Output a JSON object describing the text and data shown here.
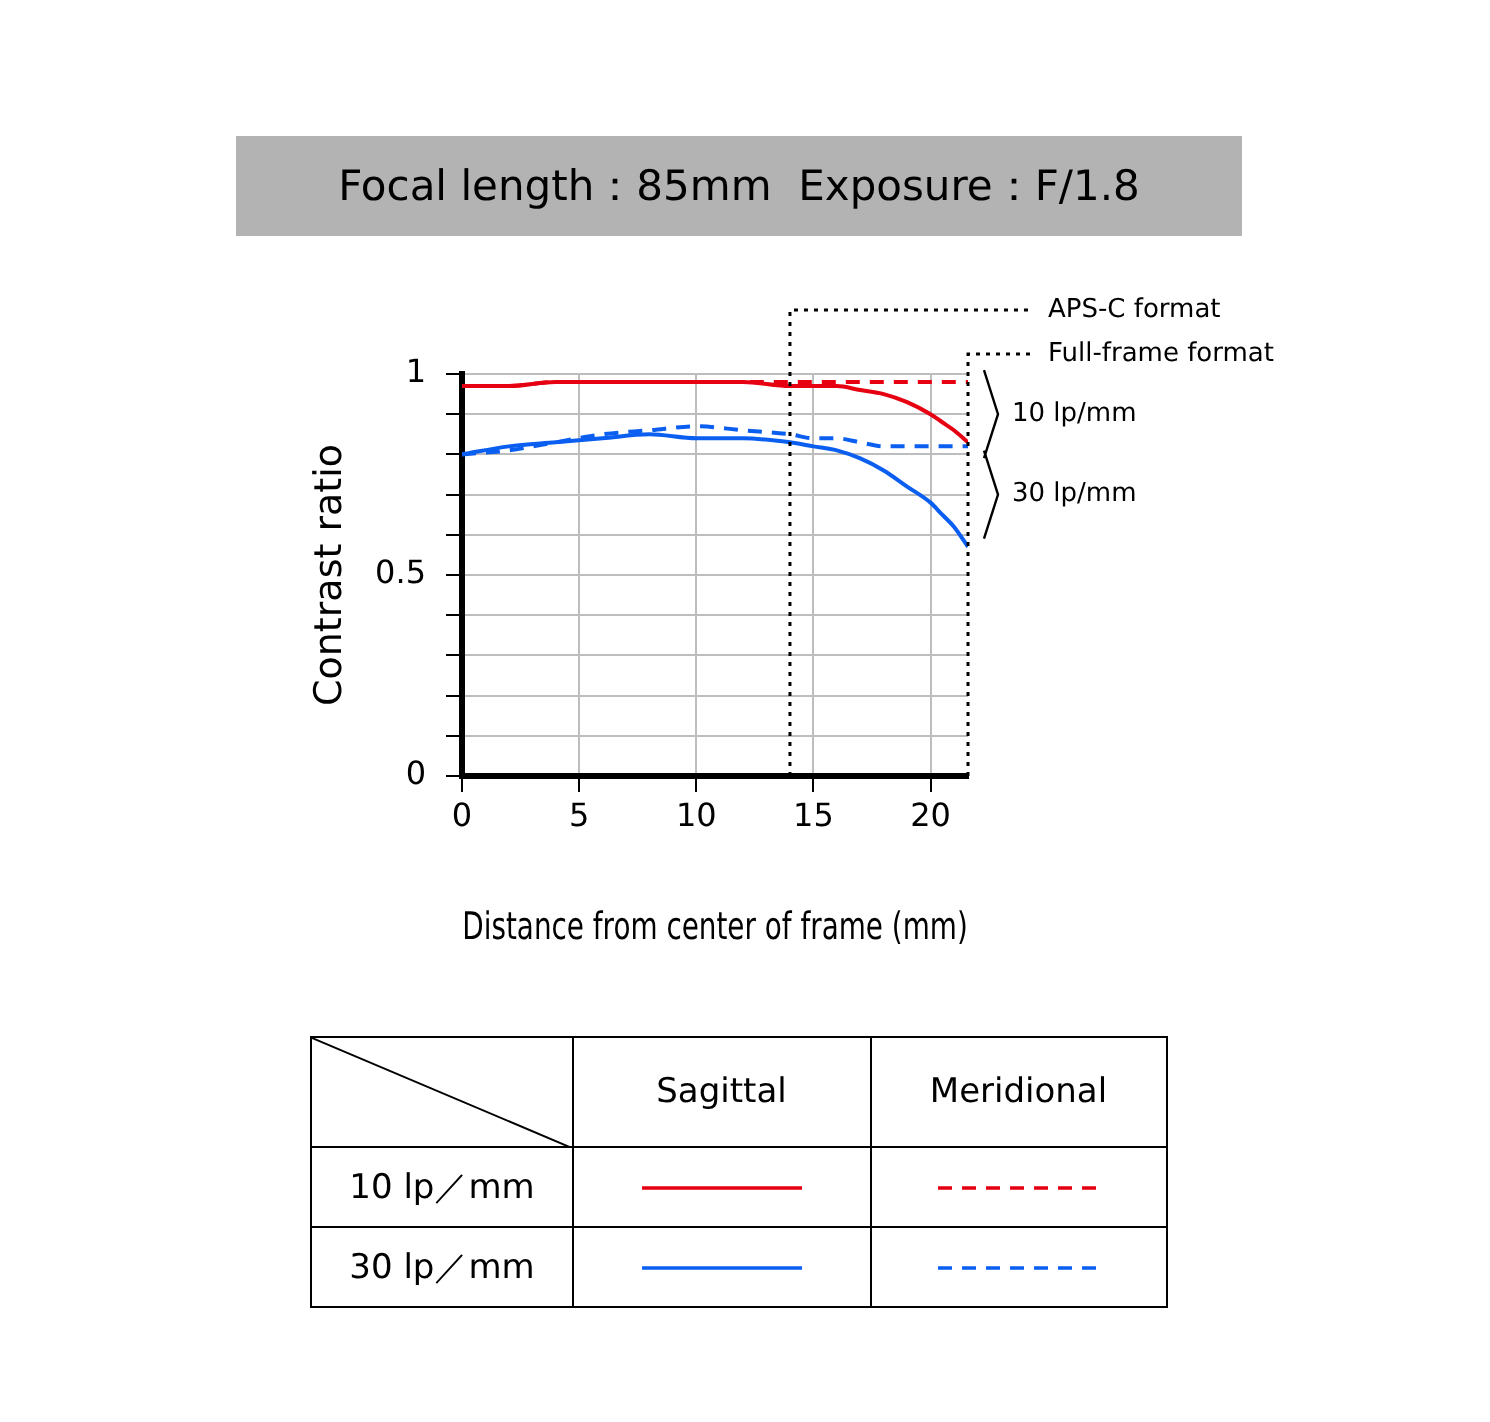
{
  "chart_data": {
    "type": "line",
    "title": "Focal length：85mm  Exposure：F/1.8",
    "xlabel": "Distance from center of frame (mm)",
    "ylabel": "Contrast ratio",
    "x": [
      0,
      2,
      4,
      6,
      8,
      10,
      12,
      14,
      15,
      16,
      17,
      18,
      19,
      20,
      20.5,
      21,
      21.6
    ],
    "series": [
      {
        "color": "#e60012",
        "line_style": "solid",
        "values": [
          0.97,
          0.97,
          0.98,
          0.98,
          0.98,
          0.98,
          0.98,
          0.97,
          0.97,
          0.97,
          0.96,
          0.95,
          0.93,
          0.9,
          0.88,
          0.86,
          0.83
        ]
      },
      {
        "color": "#e60012",
        "line_style": "dashed",
        "values": [
          0.97,
          0.97,
          0.98,
          0.98,
          0.98,
          0.98,
          0.98,
          0.98,
          0.98,
          0.98,
          0.98,
          0.98,
          0.98,
          0.98,
          0.98,
          0.98,
          0.98
        ]
      },
      {
        "color": "#0a5ff0",
        "line_style": "solid",
        "values": [
          0.8,
          0.82,
          0.83,
          0.84,
          0.85,
          0.84,
          0.84,
          0.83,
          0.82,
          0.81,
          0.79,
          0.76,
          0.72,
          0.68,
          0.65,
          0.62,
          0.57
        ]
      },
      {
        "color": "#0a5ff0",
        "line_style": "dashed",
        "values": [
          0.8,
          0.81,
          0.83,
          0.85,
          0.86,
          0.87,
          0.86,
          0.85,
          0.84,
          0.84,
          0.83,
          0.82,
          0.82,
          0.82,
          0.82,
          0.82,
          0.82
        ]
      }
    ],
    "xlim": [
      0,
      21.6
    ],
    "xticks": [
      0,
      5,
      10,
      15,
      20
    ],
    "ylim": [
      0,
      1
    ],
    "yticks": [
      0,
      {
        "value": 0.1,
        "label": null
      },
      {
        "value": 0.2,
        "label": null
      },
      {
        "value": 0.3,
        "label": null
      },
      {
        "value": 0.4,
        "label": null
      },
      0.5,
      {
        "value": 0.6,
        "label": null
      },
      {
        "value": 0.7,
        "label": null
      },
      {
        "value": 0.8,
        "label": null
      },
      {
        "value": 0.9,
        "label": null
      },
      1
    ],
    "grid": true,
    "marker": "none",
    "ref_lines": [
      {
        "axis": "x",
        "value": 14,
        "label": "APS-C format",
        "color": "#000000",
        "line_style": "dotted"
      },
      {
        "axis": "x",
        "value": 21.6,
        "label": "Full-frame format",
        "color": "#000000",
        "line_style": "dotted"
      }
    ],
    "annotations": [
      {
        "text": "10 lp/mm",
        "x": 21.6,
        "y": 0.9
      },
      {
        "text": "30 lp/mm",
        "x": 21.6,
        "y": 0.7
      },
      "Sagittal",
      "Meridional",
      "10 lp／mm",
      "30 lp／mm"
    ]
  }
}
